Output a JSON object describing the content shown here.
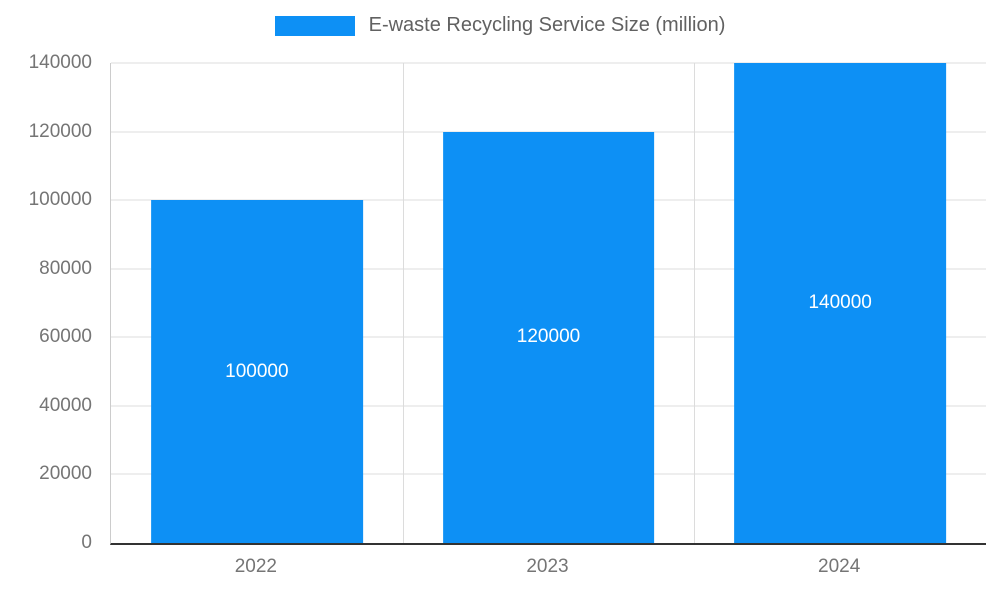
{
  "legend": {
    "label": "E-waste Recycling Service Size (million)",
    "position": "top"
  },
  "colors": {
    "bar": "#0d90f5",
    "grid": "#dcdcdc",
    "axis_baseline": "#333333",
    "axis_line": "#cccccc",
    "tick_text": "#757575",
    "legend_text": "#616161",
    "value_label_text": "#ffffff",
    "background": "#ffffff"
  },
  "chart_data": {
    "type": "bar",
    "title": "E-waste Recycling Service Size (million)",
    "categories": [
      "2022",
      "2023",
      "2024"
    ],
    "values": [
      100000,
      120000,
      140000
    ],
    "data_labels": [
      "100000",
      "120000",
      "140000"
    ],
    "xlabel": "",
    "ylabel": "",
    "ylim": [
      0,
      140000
    ],
    "yticks": [
      0,
      20000,
      40000,
      60000,
      80000,
      100000,
      120000,
      140000
    ],
    "ytick_labels": [
      "0",
      "20000",
      "40000",
      "60000",
      "80000",
      "100000",
      "120000",
      "140000"
    ],
    "grid": "horizontal gridlines plus vertical category separators",
    "legend_position": "top-center",
    "value_labels_position": "inside-center"
  }
}
